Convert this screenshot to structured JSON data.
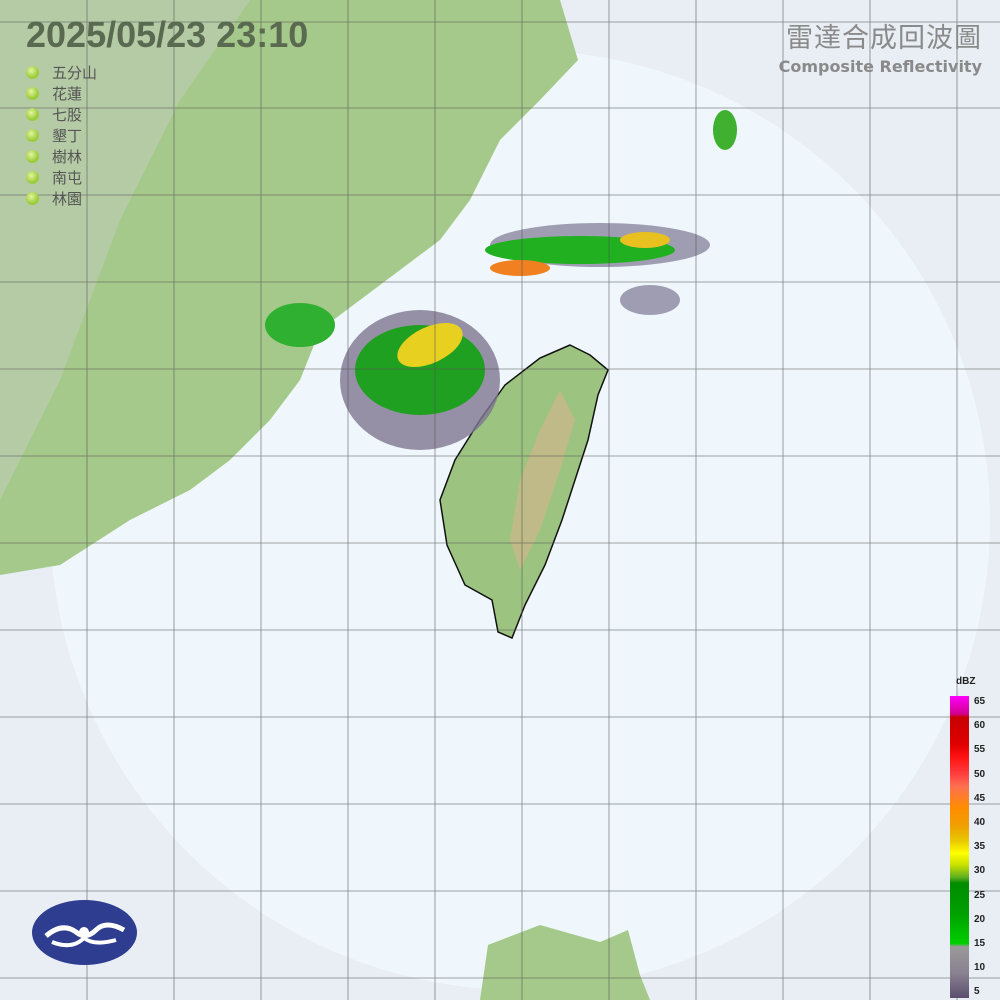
{
  "header": {
    "datetime": "2025/05/23  23:10",
    "product_title_zh": "雷達合成回波圖",
    "product_title_en": "Composite Reflectivity"
  },
  "stations": [
    {
      "name": "五分山",
      "status_color": "#9ccc3a"
    },
    {
      "name": "花蓮",
      "status_color": "#9ccc3a"
    },
    {
      "name": "七股",
      "status_color": "#9ccc3a"
    },
    {
      "name": "墾丁",
      "status_color": "#9ccc3a"
    },
    {
      "name": "樹林",
      "status_color": "#9ccc3a"
    },
    {
      "name": "南屯",
      "status_color": "#9ccc3a"
    },
    {
      "name": "林園",
      "status_color": "#9ccc3a"
    }
  ],
  "legend": {
    "unit": "dBZ",
    "ticks": [
      "65",
      "60",
      "55",
      "50",
      "45",
      "40",
      "35",
      "30",
      "25",
      "20",
      "15",
      "10",
      "5"
    ]
  },
  "logo": {
    "icon": "cwa-cloud-logo",
    "color": "#2e3d8f"
  }
}
